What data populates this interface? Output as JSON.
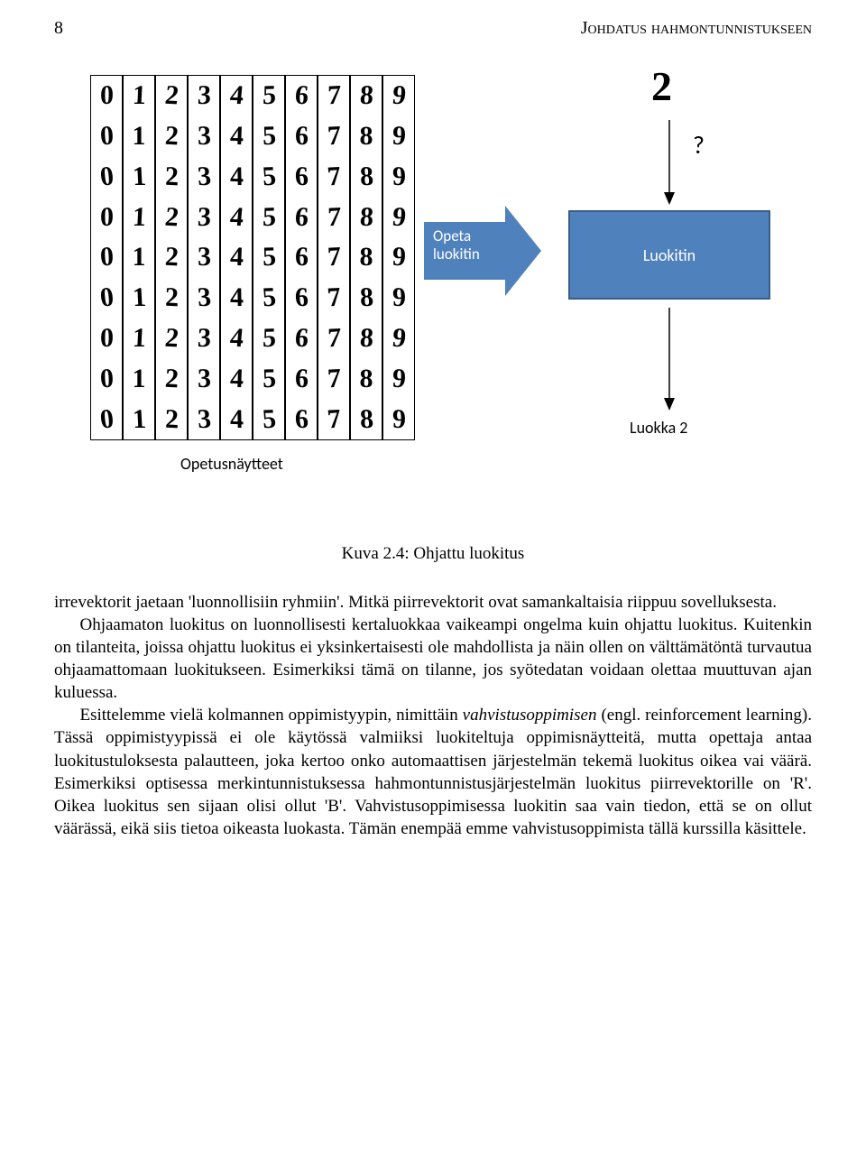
{
  "header": {
    "page_number": "8",
    "running_title": "Johdatus hahmontunnistukseen"
  },
  "figure": {
    "digits_grid": {
      "columns": 10,
      "rows": 9,
      "column_digits": [
        "0",
        "1",
        "2",
        "3",
        "4",
        "5",
        "6",
        "7",
        "8",
        "9"
      ],
      "cell_font_family": "Comic Sans MS",
      "cell_font_size_pt": 24,
      "border_color": "#000000",
      "background_color": "#ffffff"
    },
    "digits_label": "Opetusnäytteet",
    "arrow_label_line1": "Opeta",
    "arrow_label_line2": "luokitin",
    "arrow_fill": "#4f81bd",
    "classifier_box": {
      "label": "Luokitin",
      "fill": "#4f81bd",
      "border": "#385d8a",
      "text_color": "#ffffff"
    },
    "query_digit": "2",
    "question_mark": "?",
    "output_label": "Luokka 2",
    "down_arrow_stroke": "#000000",
    "label_font_family": "Calibri",
    "label_font_size_pt": 14
  },
  "caption": "Kuva 2.4: Ohjattu luokitus",
  "paragraphs": {
    "p1": "irrevektorit jaetaan 'luonnollisiin ryhmiin'. Mitkä piirrevektorit ovat samankaltaisia riippuu sovelluksesta.",
    "p2": "Ohjaamaton luokitus on luonnollisesti kertaluokkaa vaikeampi ongelma kuin ohjattu luokitus. Kuitenkin on tilanteita, joissa ohjattu luokitus ei yksinkertaisesti ole mahdollista ja näin ollen on välttämätöntä turvautua ohjaamattomaan luokitukseen. Esimerkiksi tämä on tilanne, jos syötedatan voidaan olettaa muuttuvan ajan kuluessa.",
    "p3a": "Esittelemme vielä kolmannen oppimistyypin, nimittäin ",
    "p3_em": "vahvistusoppimisen",
    "p3b": " (engl. reinforcement learning). Tässä oppimistyypissä ei ole käytössä valmiiksi luokiteltuja oppimisnäytteitä, mutta opettaja antaa luokitustuloksesta palautteen, joka kertoo onko automaattisen järjestelmän tekemä luokitus oikea vai väärä. Esimerkiksi optisessa merkintunnistuksessa hahmontunnistusjärjestelmän luokitus piirrevektorille on 'R'. Oikea luokitus sen sijaan olisi ollut 'B'. Vahvistusoppimisessa luokitin saa vain tiedon, että se on ollut väärässä, eikä siis tietoa oikeasta luokasta. Tämän enempää emme vahvistusoppimista tällä kurssilla käsittele."
  },
  "typography": {
    "body_font_family": "Times New Roman",
    "body_font_size_pt": 14,
    "header_smallcaps": true
  }
}
